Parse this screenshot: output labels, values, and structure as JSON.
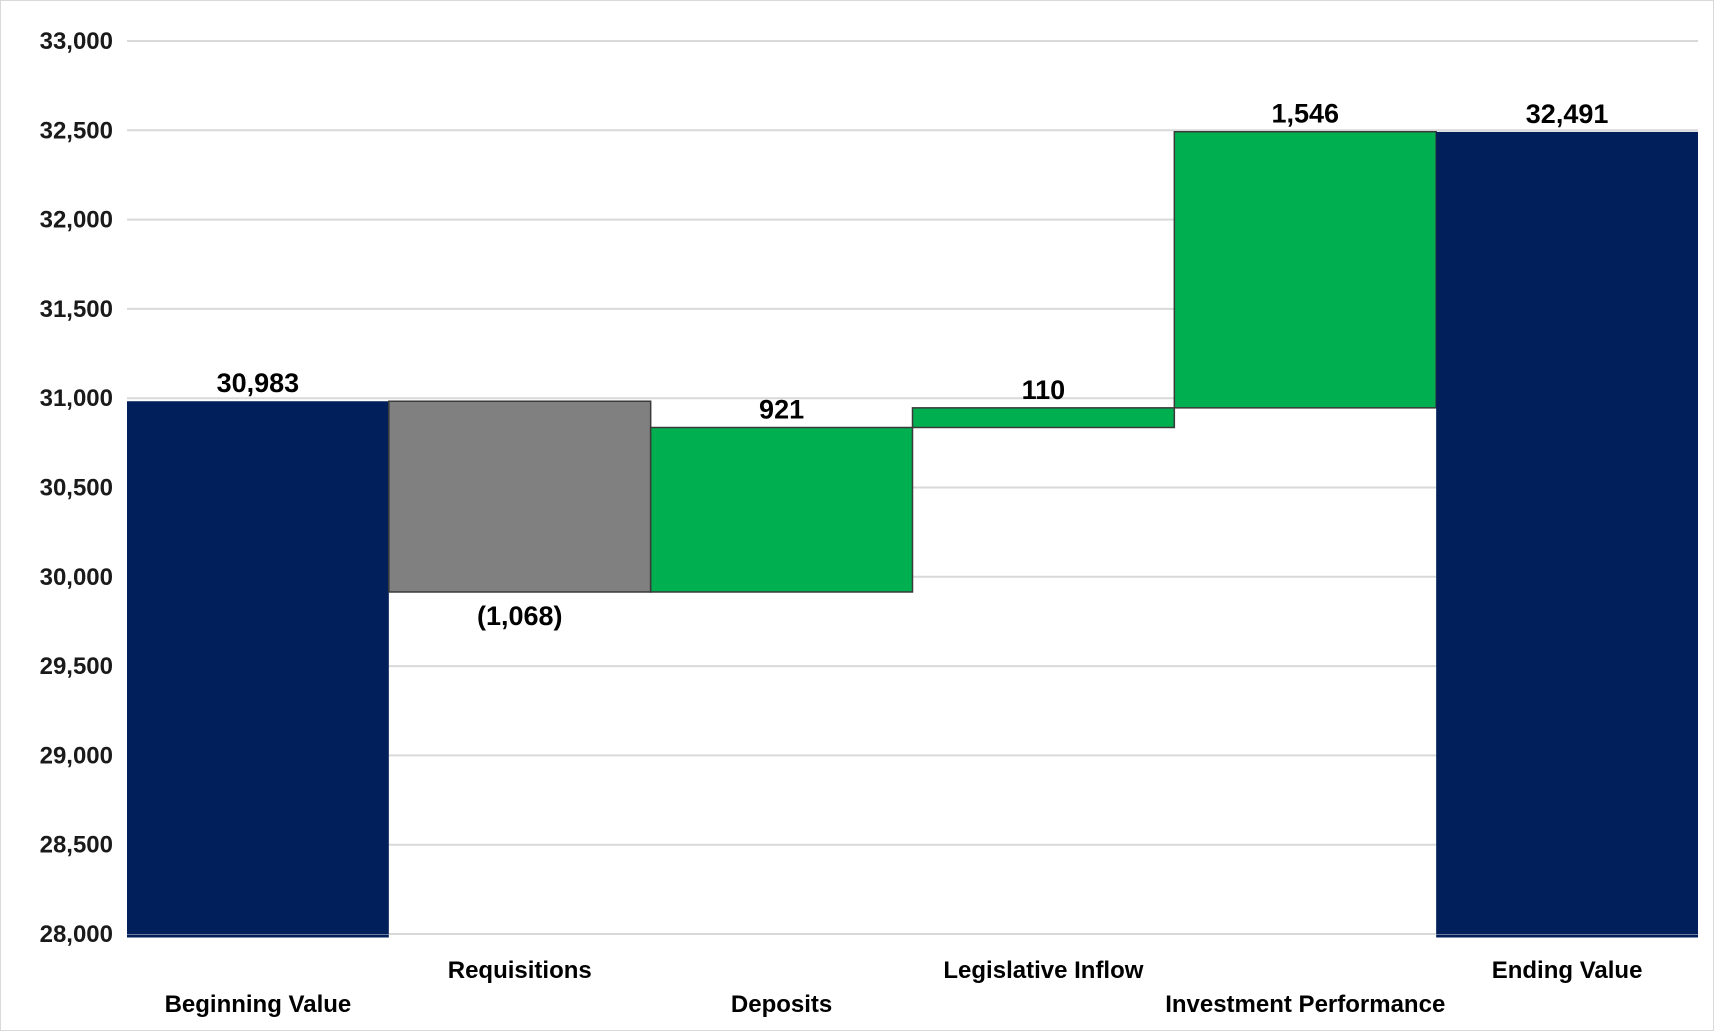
{
  "chart_data": {
    "type": "bar",
    "subtype": "waterfall",
    "title": "",
    "xlabel": "",
    "ylabel": "",
    "ylim": [
      28000,
      33000
    ],
    "y_ticks": [
      "28,000",
      "28,500",
      "29,000",
      "29,500",
      "30,000",
      "30,500",
      "31,000",
      "31,500",
      "32,000",
      "32,500",
      "33,000"
    ],
    "grid": true,
    "legend": "none",
    "categories": [
      "Beginning Value",
      "Requisitions",
      "Deposits",
      "Legislative Inflow",
      "Investment Performance",
      "Ending Value"
    ],
    "values": [
      30983,
      -1068,
      921,
      110,
      1546,
      32491
    ],
    "kinds": [
      "total",
      "delta",
      "delta",
      "delta",
      "delta",
      "total"
    ],
    "data_labels": [
      "30,983",
      "(1,068)",
      "921",
      "110",
      "1,546",
      "32,491"
    ],
    "colors": {
      "total": "#001f5b",
      "decrease": "#808080",
      "increase": "#00b050",
      "grid": "#d9d9d9"
    }
  }
}
